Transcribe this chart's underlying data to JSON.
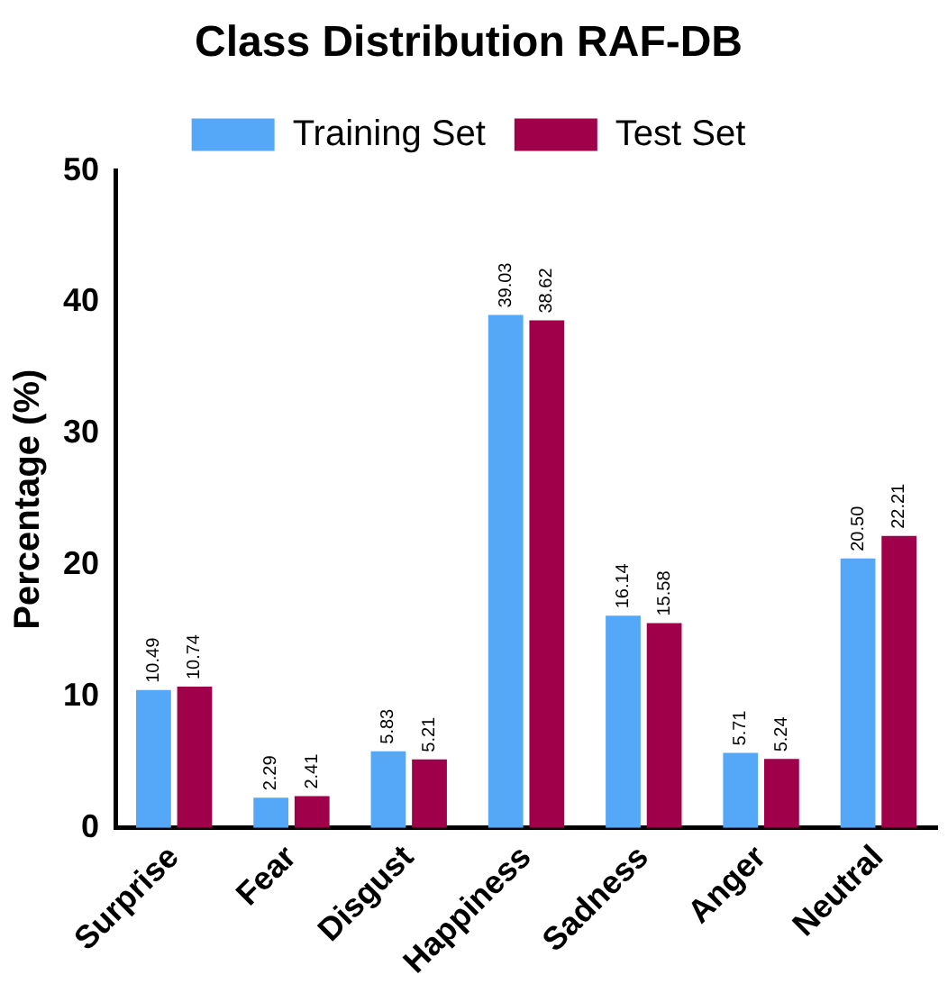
{
  "chart_data": {
    "type": "bar",
    "title": "Class Distribution RAF-DB",
    "ylabel": "Percentage (%)",
    "categories": [
      "Surprise",
      "Fear",
      "Disgust",
      "Happiness",
      "Sadness",
      "Anger",
      "Neutral"
    ],
    "series": [
      {
        "name": "Training Set",
        "color": "#55a8f8",
        "values": [
          10.49,
          2.29,
          5.83,
          39.03,
          16.14,
          5.71,
          20.5
        ],
        "value_labels": [
          "10.49",
          "2.29",
          "5.83",
          "39.03",
          "16.14",
          "5.71",
          "20.50"
        ]
      },
      {
        "name": "Test Set",
        "color": "#a0004a",
        "values": [
          10.74,
          2.41,
          5.21,
          38.62,
          15.58,
          5.24,
          22.21
        ],
        "value_labels": [
          "10.74",
          "2.41",
          "5.21",
          "38.62",
          "15.58",
          "5.24",
          "22.21"
        ]
      }
    ],
    "ylim": [
      0,
      50
    ],
    "yticks": [
      0,
      10,
      20,
      30,
      40,
      50
    ],
    "grid": false,
    "legend": "top"
  }
}
